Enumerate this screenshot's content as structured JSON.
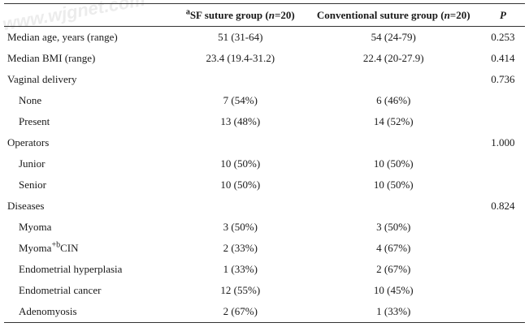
{
  "watermark": "www.wjgnet.com",
  "header": {
    "col1": "",
    "col2_sup": "a",
    "col2_text": "SF suture group (",
    "col2_n": "n",
    "col2_rest": "=20)",
    "col3_text": "Conventional suture group (",
    "col3_n": "n",
    "col3_rest": "=20)",
    "col4": "P"
  },
  "rows": [
    {
      "label": "Median age, years (range)",
      "sf": "51 (31-64)",
      "conv": "54 (24-79)",
      "p": "0.253"
    },
    {
      "label": "Median BMI (range)",
      "sf": "23.4 (19.4-31.2)",
      "conv": "22.4 (20-27.9)",
      "p": "0.414"
    },
    {
      "label": "Vaginal delivery",
      "sf": "",
      "conv": "",
      "p": "0.736"
    },
    {
      "label": "None",
      "sf": "7 (54%)",
      "conv": "6 (46%)",
      "p": ""
    },
    {
      "label": "Present",
      "sf": "13 (48%)",
      "conv": "14 (52%)",
      "p": ""
    },
    {
      "label": "Operators",
      "sf": "",
      "conv": "",
      "p": "1.000"
    },
    {
      "label": "Junior",
      "sf": "10 (50%)",
      "conv": "10 (50%)",
      "p": ""
    },
    {
      "label": "Senior",
      "sf": "10 (50%)",
      "conv": "10 (50%)",
      "p": ""
    },
    {
      "label": "Diseases",
      "sf": "",
      "conv": "",
      "p": "0.824"
    },
    {
      "label": "Myoma",
      "sf": "3 (50%)",
      "conv": "3 (50%)",
      "p": ""
    },
    {
      "label_pre": "Myoma",
      "label_sup": "+b",
      "label_post": "CIN",
      "sf": "2 (33%)",
      "conv": "4 (67%)",
      "p": ""
    },
    {
      "label": "Endometrial hyperplasia",
      "sf": "1 (33%)",
      "conv": "2 (67%)",
      "p": ""
    },
    {
      "label": "Endometrial cancer",
      "sf": "12 (55%)",
      "conv": "10 (45%)",
      "p": ""
    },
    {
      "label": "Adenomyosis",
      "sf": "2 (67%)",
      "conv": "1 (33%)",
      "p": ""
    }
  ]
}
